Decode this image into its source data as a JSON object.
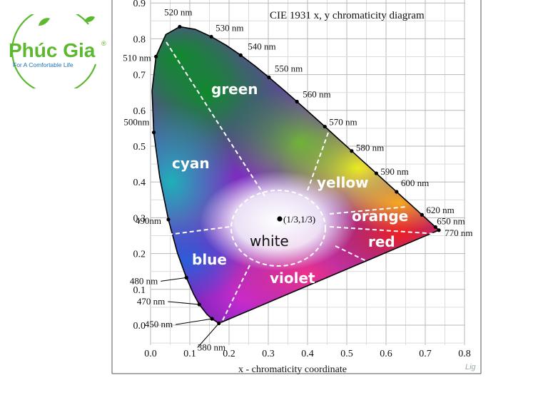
{
  "logo": {
    "brand": "Phúc Gia",
    "registered": "®",
    "tagline": "For A Comfortable Life",
    "colors": {
      "green": "#5cb82e",
      "blue": "#1f6fb5"
    }
  },
  "diagram": {
    "title": "CIE 1931 x, y chromaticity diagram",
    "xlabel": "x - chromaticity coordinate",
    "watermark": "Lig",
    "x_ticks": [
      "0.0",
      "0.1",
      "0.2",
      "0.3",
      "0.4",
      "0.5",
      "0.6",
      "0.7",
      "0.8"
    ],
    "y_ticks": [
      "0.0",
      "0.1",
      "0.2",
      "0.3",
      "0.4",
      "0.5",
      "0.6",
      "0.7",
      "0.8",
      "0.9"
    ],
    "wavelengths": [
      {
        "label": "380 nm",
        "x": 0.1741,
        "y": 0.005
      },
      {
        "label": "450 nm",
        "x": 0.1566,
        "y": 0.0177
      },
      {
        "label": "470 nm",
        "x": 0.1241,
        "y": 0.0578
      },
      {
        "label": "480 nm",
        "x": 0.0913,
        "y": 0.1327
      },
      {
        "label": "490nm",
        "x": 0.0454,
        "y": 0.295
      },
      {
        "label": "500nm",
        "x": 0.0082,
        "y": 0.5384
      },
      {
        "label": "510 nm",
        "x": 0.0139,
        "y": 0.7502
      },
      {
        "label": "520 nm",
        "x": 0.0743,
        "y": 0.8338
      },
      {
        "label": "530 nm",
        "x": 0.1547,
        "y": 0.8059
      },
      {
        "label": "540 nm",
        "x": 0.2296,
        "y": 0.7543
      },
      {
        "label": "550 nm",
        "x": 0.3016,
        "y": 0.6923
      },
      {
        "label": "560 nm",
        "x": 0.3731,
        "y": 0.6245
      },
      {
        "label": "570 nm",
        "x": 0.4441,
        "y": 0.5547
      },
      {
        "label": "580 nm",
        "x": 0.5125,
        "y": 0.4866
      },
      {
        "label": "590 nm",
        "x": 0.5752,
        "y": 0.4242
      },
      {
        "label": "600 nm",
        "x": 0.627,
        "y": 0.3725
      },
      {
        "label": "620 nm",
        "x": 0.6915,
        "y": 0.3083
      },
      {
        "label": "650 nm",
        "x": 0.726,
        "y": 0.274
      },
      {
        "label": "770 nm",
        "x": 0.7347,
        "y": 0.2653
      }
    ],
    "regions": [
      "green",
      "cyan",
      "yellow",
      "orange",
      "white",
      "red",
      "blue",
      "violet"
    ],
    "white_point_label": "(1/3,1/3)"
  }
}
